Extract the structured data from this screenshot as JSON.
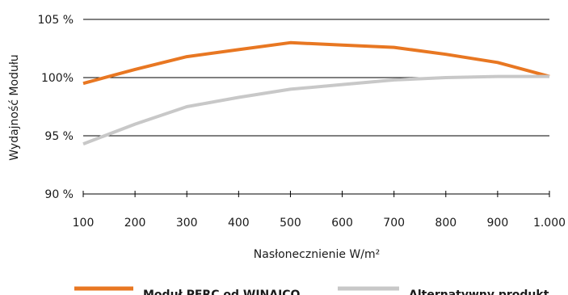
{
  "chart_data": {
    "type": "line",
    "xlabel": "Nasłonecznienie W/m²",
    "ylabel": "Wydajność Modułu",
    "x_ticks": [
      "100",
      "200",
      "300",
      "400",
      "500",
      "600",
      "700",
      "800",
      "900",
      "1.000"
    ],
    "y_ticks": [
      {
        "value": 90,
        "label": "90 %"
      },
      {
        "value": 95,
        "label": "95 %"
      },
      {
        "value": 100,
        "label": "100%"
      },
      {
        "value": 105,
        "label": "105 %"
      }
    ],
    "xlim": [
      100,
      1000
    ],
    "ylim": [
      90,
      105
    ],
    "grid": true,
    "legend_position": "bottom",
    "series": [
      {
        "name": "Moduł PERC od WINAICO",
        "color": "#e87722",
        "x": [
          100,
          200,
          300,
          400,
          500,
          600,
          700,
          800,
          900,
          1000
        ],
        "y": [
          99.5,
          100.7,
          101.8,
          102.4,
          103.0,
          102.8,
          102.6,
          102.0,
          101.3,
          100.1
        ]
      },
      {
        "name": "Alternatywny produkt",
        "color": "#c8c8c8",
        "x": [
          100,
          200,
          300,
          400,
          500,
          600,
          700,
          800,
          900,
          1000
        ],
        "y": [
          94.3,
          96.0,
          97.5,
          98.3,
          99.0,
          99.4,
          99.8,
          100.0,
          100.1,
          100.1
        ]
      }
    ]
  }
}
